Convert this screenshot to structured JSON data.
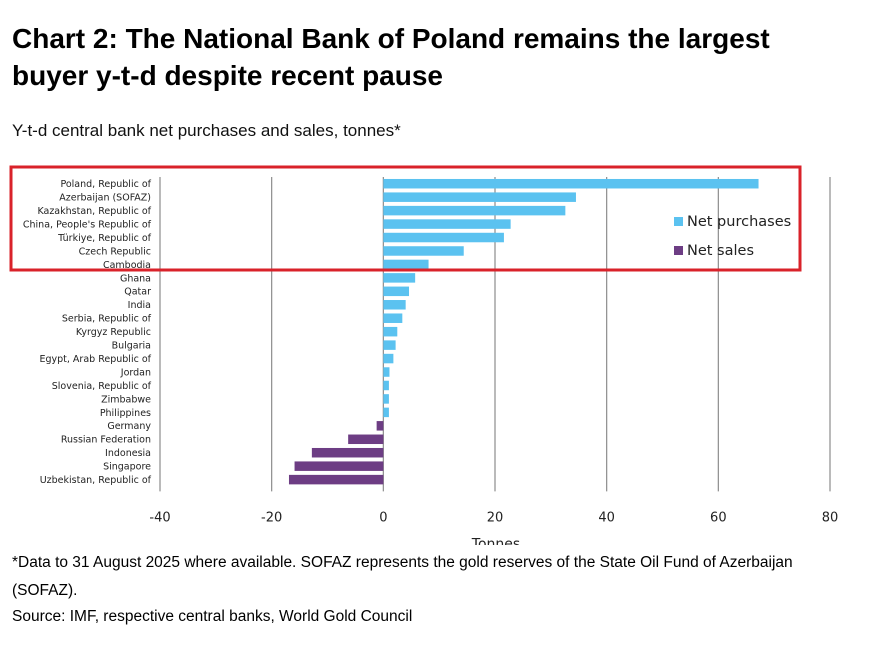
{
  "title": "Chart 2: The National Bank of Poland remains the largest buyer y-t-d despite recent pause",
  "subtitle": "Y-t-d central bank net purchases and sales, tonnes*",
  "footnote": "*Data to 31 August 2025 where available. SOFAZ represents the gold reserves of the State Oil Fund of Azerbaijan (SOFAZ).",
  "source": "Source: IMF, respective central banks, World Gold Council",
  "colors": {
    "purchases": "#5BC2F0",
    "sales": "#6D3D84",
    "highlight": "#D9222A",
    "grid": "#8C8C8C"
  },
  "chart_data": {
    "type": "bar",
    "orientation": "horizontal",
    "title": "Y-t-d central bank net purchases and sales, tonnes*",
    "xlabel": "Tonnes",
    "ylabel": "",
    "xlim": [
      -40,
      80
    ],
    "xticks": [
      -40,
      -20,
      0,
      20,
      40,
      60,
      80
    ],
    "grid": true,
    "legend": [
      "Net purchases",
      "Net sales"
    ],
    "legend_position": "right",
    "highlighted_categories": [
      "Poland, Republic of",
      "Azerbaijan (SOFAZ)",
      "Kazakhstan, Republic of",
      "China, People's Republic of",
      "Türkiye, Republic of",
      "Czech Republic",
      "Cambodia"
    ],
    "categories": [
      "Poland, Republic of",
      "Azerbaijan (SOFAZ)",
      "Kazakhstan, Republic of",
      "China, People's Republic of",
      "Türkiye, Republic of",
      "Czech Republic",
      "Cambodia",
      "Ghana",
      "Qatar",
      "India",
      "Serbia, Republic of",
      "Kyrgyz Republic",
      "Bulgaria",
      "Egypt, Arab Republic of",
      "Jordan",
      "Slovenia, Republic of",
      "Zimbabwe",
      "Philippines",
      "Germany",
      "Russian Federation",
      "Indonesia",
      "Singapore",
      "Uzbekistan, Republic of"
    ],
    "values": [
      67.2,
      34.5,
      32.6,
      22.8,
      21.6,
      14.4,
      8.1,
      5.7,
      4.6,
      4.0,
      3.4,
      2.5,
      2.2,
      1.8,
      1.1,
      1.0,
      1.0,
      1.0,
      -1.2,
      -6.3,
      -12.8,
      -15.9,
      -16.9
    ]
  }
}
